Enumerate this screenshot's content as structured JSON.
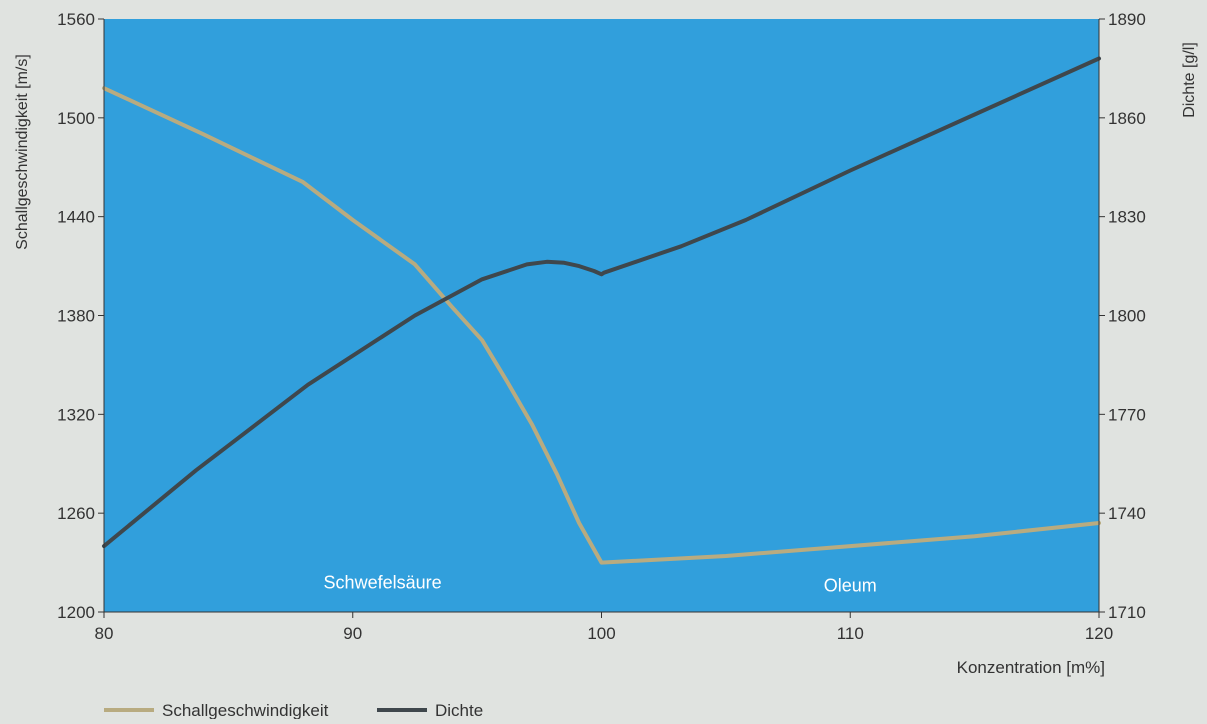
{
  "colors": {
    "page_background": "#e0e3e0",
    "plot_background": "#319fdc",
    "sound_speed": "#b8ab80",
    "density": "#3f474c",
    "text": "#333333",
    "region_label": "#ffffff"
  },
  "chart_data": {
    "type": "line",
    "xlabel": "Konzentration [m%]",
    "ylabel_left": "Schallgeschwindigkeit [m/s]",
    "ylabel_right": "Dichte [g/l]",
    "xlim": [
      80,
      120
    ],
    "ylim_left": [
      1200,
      1560
    ],
    "ylim_right": [
      1710,
      1890
    ],
    "x_ticks": [
      "80",
      "90",
      "100",
      "110",
      "120"
    ],
    "y_left_ticks": [
      "1200",
      "1260",
      "1320",
      "1380",
      "1440",
      "1500",
      "1560"
    ],
    "y_right_ticks": [
      "1710",
      "1740",
      "1770",
      "1800",
      "1830",
      "1860",
      "1890"
    ],
    "grid": false,
    "legend_position": "bottom-left",
    "series": [
      {
        "name": "Schallgeschwindigkeit",
        "axis": "left",
        "color": "#b8ab80",
        "points": [
          [
            80,
            1518
          ],
          [
            84,
            1490
          ],
          [
            88,
            1461
          ],
          [
            90,
            1438
          ],
          [
            92.5,
            1411
          ],
          [
            94,
            1385
          ],
          [
            95.2,
            1365
          ],
          [
            96.2,
            1340
          ],
          [
            97.2,
            1314
          ],
          [
            98.2,
            1284
          ],
          [
            99.1,
            1254
          ],
          [
            100,
            1230
          ],
          [
            105,
            1234
          ],
          [
            110,
            1240
          ],
          [
            115,
            1246
          ],
          [
            120,
            1254
          ]
        ]
      },
      {
        "name": "Dichte",
        "axis": "right",
        "color": "#3f474c",
        "points": [
          [
            80,
            1730
          ],
          [
            83.7,
            1753
          ],
          [
            88.2,
            1779
          ],
          [
            92.5,
            1800
          ],
          [
            95.2,
            1811
          ],
          [
            97,
            1815.5
          ],
          [
            97.8,
            1816.3
          ],
          [
            98.5,
            1816
          ],
          [
            99.1,
            1815
          ],
          [
            99.7,
            1813.5
          ],
          [
            100,
            1812.5
          ],
          [
            100.1,
            1813
          ],
          [
            103.2,
            1821
          ],
          [
            105.8,
            1829
          ],
          [
            110,
            1844
          ],
          [
            115,
            1861
          ],
          [
            120,
            1878
          ]
        ]
      }
    ],
    "annotations": [
      {
        "text": "Schwefelsäure",
        "x": 91.2,
        "y": 1218
      },
      {
        "text": "Oleum",
        "x": 110,
        "y": 1216
      }
    ]
  }
}
